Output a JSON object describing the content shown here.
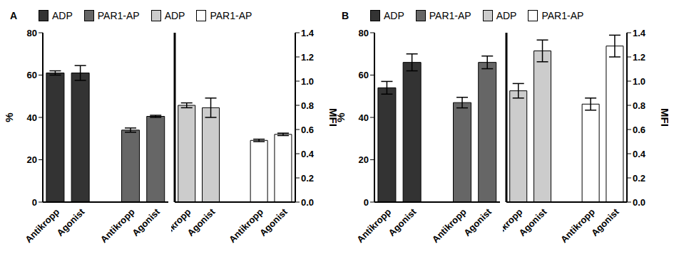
{
  "chart_data": [
    {
      "type": "bar",
      "title": "A",
      "categories": [
        "Antikropp",
        "Agonist"
      ],
      "ylabel": "%",
      "y2label": "MFI",
      "ylim": [
        0,
        80
      ],
      "yticks": [
        0,
        20,
        40,
        60,
        80
      ],
      "y2lim": [
        0,
        1.4
      ],
      "y2ticks": [
        {
          "value": 0,
          "label": "0.0"
        },
        {
          "value": 0.2,
          "label": "0.2"
        },
        {
          "value": 0.4,
          "label": "0.4"
        },
        {
          "value": 0.6,
          "label": "0.6"
        },
        {
          "value": 0.8,
          "label": "0.8"
        },
        {
          "value": 1,
          "label": "1.0"
        },
        {
          "value": 1.2,
          "label": "1.2"
        },
        {
          "value": 1.4,
          "label": "1.4"
        }
      ],
      "legend": "top",
      "series": [
        {
          "name": "ADP",
          "color": "#333333",
          "values": [
            61,
            61
          ],
          "errors": [
            1,
            3.5
          ]
        },
        {
          "name": "PAR1-AP",
          "color": "#666666",
          "values": [
            34,
            40.5
          ],
          "errors": [
            1,
            0.5
          ]
        },
        {
          "name": "ADP",
          "color": "#cccccc",
          "axis": "y2",
          "values": [
            0.8,
            0.78
          ],
          "errors": [
            0.02,
            0.08
          ]
        },
        {
          "name": "PAR1-AP",
          "color": "#ffffff",
          "axis": "y2",
          "values": [
            0.51,
            0.56
          ],
          "errors": [
            0.01,
            0.01
          ]
        }
      ]
    },
    {
      "type": "bar",
      "title": "B",
      "categories": [
        "Antikropp",
        "Agonist"
      ],
      "ylabel": "%",
      "y2label": "MFI",
      "ylim": [
        0,
        80
      ],
      "yticks": [
        0,
        20,
        40,
        60,
        80
      ],
      "y2lim": [
        0,
        1.4
      ],
      "y2ticks": [
        {
          "value": 0,
          "label": "0.0"
        },
        {
          "value": 0.2,
          "label": "0.2"
        },
        {
          "value": 0.4,
          "label": "0.4"
        },
        {
          "value": 0.6,
          "label": "0.6"
        },
        {
          "value": 0.8,
          "label": "0.8"
        },
        {
          "value": 1,
          "label": "1.0"
        },
        {
          "value": 1.2,
          "label": "1.2"
        },
        {
          "value": 1.4,
          "label": "1.4"
        }
      ],
      "legend": "top",
      "series": [
        {
          "name": "ADP",
          "color": "#333333",
          "values": [
            54,
            66
          ],
          "errors": [
            3,
            4
          ]
        },
        {
          "name": "PAR1-AP",
          "color": "#666666",
          "values": [
            47,
            66
          ],
          "errors": [
            2.5,
            3
          ]
        },
        {
          "name": "ADP",
          "color": "#cccccc",
          "axis": "y2",
          "values": [
            0.92,
            1.25
          ],
          "errors": [
            0.06,
            0.09
          ]
        },
        {
          "name": "PAR1-AP",
          "color": "#ffffff",
          "axis": "y2",
          "values": [
            0.81,
            1.29
          ],
          "errors": [
            0.05,
            0.09
          ]
        }
      ]
    }
  ]
}
